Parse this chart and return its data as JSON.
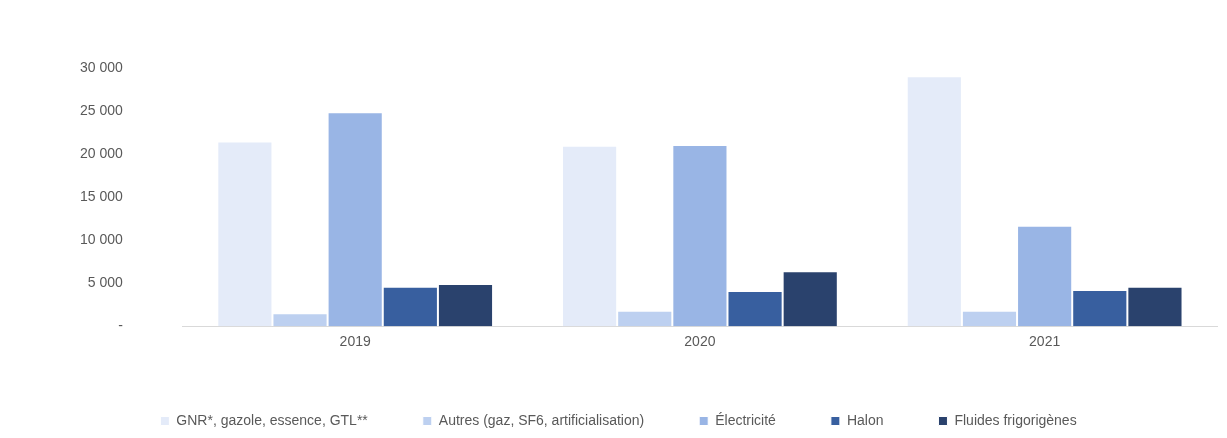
{
  "chart_data": {
    "type": "bar",
    "categories": [
      "2019",
      "2020",
      "2021"
    ],
    "series": [
      {
        "name": "GNR*, gazole, essence, GTL**",
        "color": "#e4ebf9",
        "values": [
          21500,
          21000,
          29100
        ]
      },
      {
        "name": "Autres (gaz, SF6, artificialisation)",
        "color": "#bdd0f0",
        "values": [
          1500,
          1800,
          1800
        ]
      },
      {
        "name": "Électricité",
        "color": "#99b5e5",
        "values": [
          24900,
          21100,
          11700
        ]
      },
      {
        "name": "Halon",
        "color": "#385f9f",
        "values": [
          4600,
          4100,
          4200
        ]
      },
      {
        "name": "Fluides frigorigènes",
        "color": "#2a426d",
        "values": [
          4900,
          6400,
          4600
        ]
      }
    ],
    "ylim": [
      0,
      30000
    ],
    "yticks": [
      {
        "value": 0,
        "label": "-"
      },
      {
        "value": 5000,
        "label": "5 000"
      },
      {
        "value": 10000,
        "label": "10 000"
      },
      {
        "value": 15000,
        "label": "15 000"
      },
      {
        "value": 20000,
        "label": "20 000"
      },
      {
        "value": 25000,
        "label": "25 000"
      },
      {
        "value": 30000,
        "label": "30 000"
      }
    ],
    "grid": false,
    "legend": "bottom"
  }
}
